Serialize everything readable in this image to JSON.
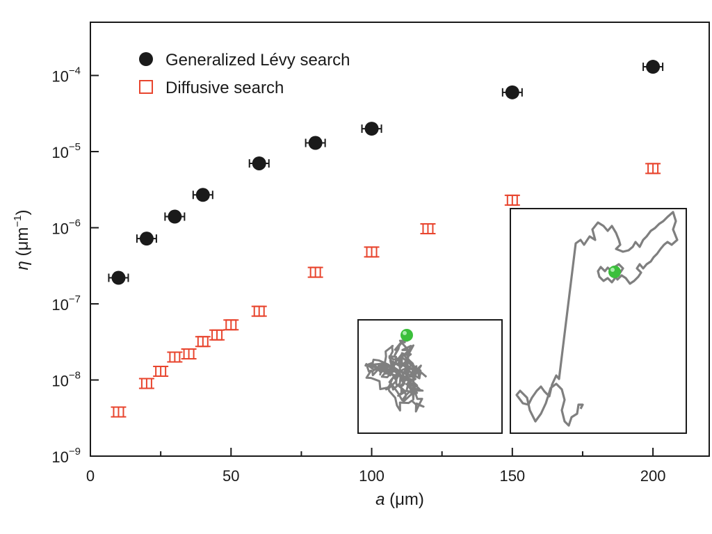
{
  "chart_data": {
    "type": "scatter",
    "xlabel_italic": "a",
    "xlabel_unit": " (μm)",
    "ylabel_italic": "η",
    "ylabel_unit_pre": " (μm",
    "ylabel_unit_sup": "−1",
    "ylabel_unit_post": ")",
    "xlim": [
      0,
      220
    ],
    "ylim": [
      1e-09,
      0.0005
    ],
    "yscale": "log",
    "grid": false,
    "legend_position": "top-left",
    "x_ticks": [
      0,
      50,
      100,
      150,
      200
    ],
    "x_tick_labels": [
      "0",
      "50",
      "100",
      "150",
      "200"
    ],
    "y_ticks": [
      1e-09,
      1e-08,
      1e-07,
      1e-06,
      1e-05,
      0.0001
    ],
    "y_tick_base": "10",
    "y_tick_exponents": [
      "−9",
      "−8",
      "−7",
      "−6",
      "−5",
      "−4"
    ],
    "series": [
      {
        "name": "Generalized Lévy search",
        "marker": "filled-circle",
        "color": "#1a1a1a",
        "x": [
          10,
          20,
          30,
          40,
          60,
          80,
          100,
          150,
          200
        ],
        "y": [
          2.2e-07,
          7.2e-07,
          1.4e-06,
          2.7e-06,
          7e-06,
          1.3e-05,
          2e-05,
          6e-05,
          0.00013
        ]
      },
      {
        "name": "Diffusive search",
        "marker": "open-square",
        "color": "#e8452e",
        "x": [
          10,
          20,
          25,
          30,
          35,
          40,
          45,
          50,
          60,
          80,
          100,
          120,
          150,
          200
        ],
        "y": [
          3.8e-09,
          9e-09,
          1.3e-08,
          2e-08,
          2.2e-08,
          3.2e-08,
          3.9e-08,
          5.3e-08,
          8e-08,
          2.6e-07,
          4.8e-07,
          9.7e-07,
          2.3e-06,
          6e-06
        ]
      }
    ],
    "insets": [
      {
        "name": "diffusive-trajectory",
        "description_visible": "random walk path with target sphere"
      },
      {
        "name": "levy-trajectory",
        "description_visible": "Lévy walk path with target sphere"
      }
    ],
    "target_color": "#3bbf3b",
    "path_color": "#7f7f7f"
  }
}
